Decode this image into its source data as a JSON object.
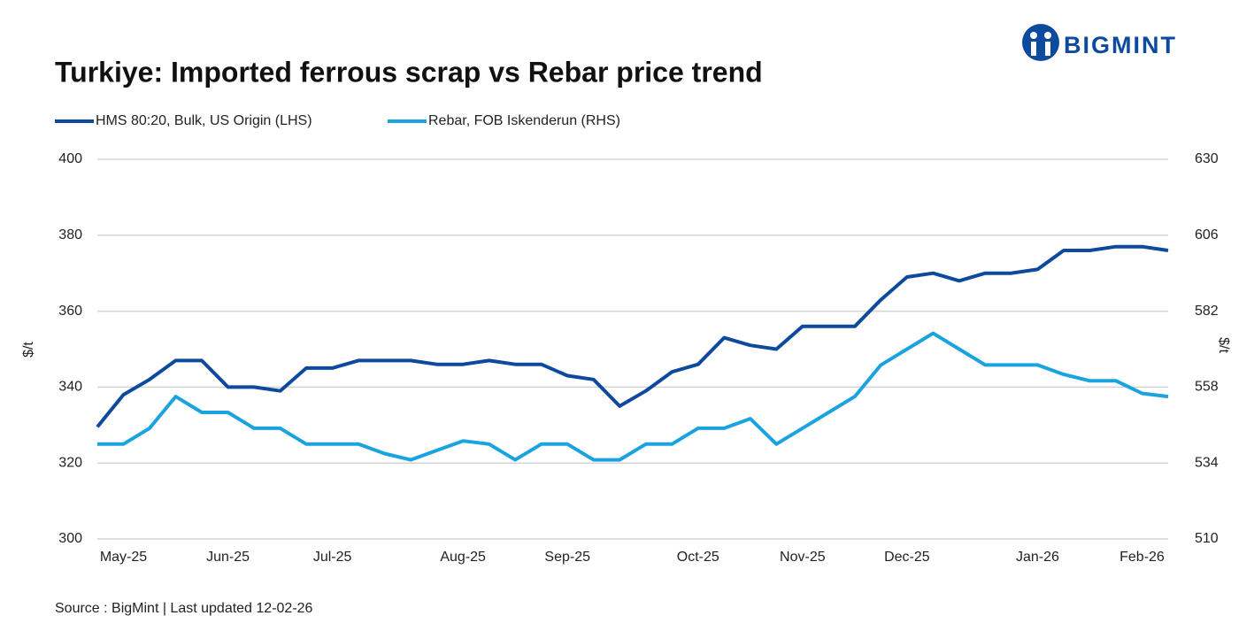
{
  "brand": "BIGMINT",
  "chart_data": {
    "type": "line",
    "title": "Turkiye: Imported ferrous scrap vs Rebar price trend",
    "source": "Source : BigMint | Last updated 12-02-26",
    "ylabel": "$/t",
    "y2label": "$/t",
    "categories": [
      null,
      "May-25",
      null,
      null,
      null,
      "Jun-25",
      null,
      null,
      null,
      "Jul-25",
      null,
      null,
      null,
      null,
      "Aug-25",
      null,
      null,
      null,
      "Sep-25",
      null,
      null,
      null,
      null,
      "Oct-25",
      null,
      null,
      null,
      "Nov-25",
      null,
      null,
      null,
      "Dec-25",
      null,
      null,
      null,
      null,
      "Jan-26",
      null,
      null,
      null,
      "Feb-26",
      null
    ],
    "ylim": [
      300,
      400
    ],
    "yticks": [
      300,
      320,
      340,
      360,
      380,
      400
    ],
    "y2lim": [
      510,
      630
    ],
    "y2ticks": [
      510,
      534,
      558,
      582,
      606,
      630
    ],
    "grid": true,
    "legend": "top-left",
    "series": [
      {
        "name": "HMS 80:20, Bulk, US Origin (LHS)",
        "color": "#0d4a9e",
        "values": [
          329.5,
          338,
          342,
          347,
          347,
          340,
          340,
          339,
          345,
          345,
          347,
          347,
          347,
          346,
          346,
          347,
          346,
          346,
          343,
          342,
          335,
          339,
          344,
          346,
          353,
          351,
          350,
          356,
          356,
          356,
          363,
          369,
          370,
          368,
          370,
          370,
          371,
          376,
          376,
          377,
          377,
          376
        ]
      },
      {
        "name": "Rebar, FOB Iskenderun (RHS)",
        "color": "#1ba3e0",
        "axis": "y2",
        "values": [
          540,
          540,
          545,
          555,
          550,
          550,
          545,
          545,
          540,
          540,
          540,
          537,
          535,
          538,
          541,
          540,
          535,
          540,
          540,
          535,
          535,
          540,
          540,
          545,
          545,
          548,
          540,
          545,
          550,
          555,
          565,
          570,
          575,
          570,
          565,
          565,
          565,
          562,
          560,
          560,
          556,
          555
        ]
      }
    ]
  }
}
